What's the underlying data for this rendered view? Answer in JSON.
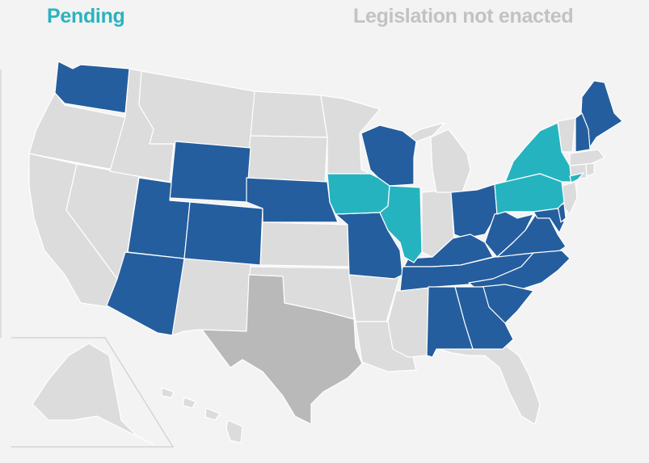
{
  "legend": {
    "pending_label": "Pending",
    "not_enacted_label": "Legislation not enacted"
  },
  "colors": {
    "background": "#f3f3f3",
    "enacted": "#255e9e",
    "pending": "#26b3c0",
    "not_enacted": "#dcdcdc",
    "texas": "#b9b9b9",
    "pending_text": "#2ab3bd",
    "not_enacted_text": "#c2c2c2"
  },
  "map": {
    "enacted_states": [
      "WA",
      "WY",
      "UT",
      "CO",
      "AZ",
      "NE",
      "MO",
      "WI",
      "KY",
      "TN",
      "WV",
      "VA",
      "NC",
      "SC",
      "GA",
      "AL",
      "OH",
      "MD",
      "ME",
      "NH",
      "DE"
    ],
    "pending_states": [
      "IA",
      "IL",
      "NY",
      "PA",
      "NJ-shore"
    ],
    "not_enacted_states": [
      "OR",
      "CA",
      "ID",
      "NV",
      "MT",
      "ND",
      "SD",
      "KS",
      "OK",
      "NM",
      "MN",
      "AR",
      "LA",
      "MS",
      "IN",
      "MI",
      "FL",
      "VT",
      "MA",
      "CT",
      "RI",
      "NJ",
      "AK",
      "HI"
    ],
    "highlighted_gray_states": [
      "TX"
    ]
  }
}
